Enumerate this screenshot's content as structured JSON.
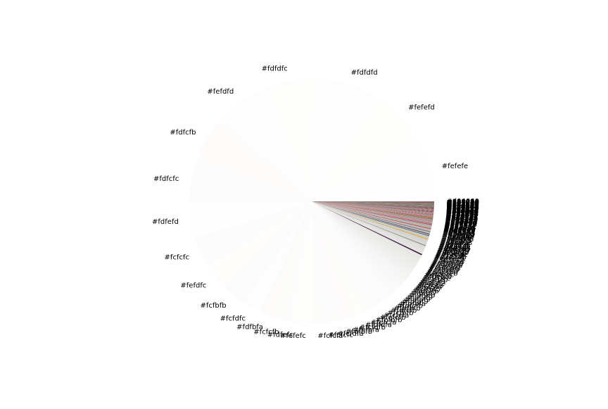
{
  "chart_data": {
    "type": "pie",
    "title": "",
    "start_angle_deg": 0,
    "direction": "counterclockwise",
    "labels": [
      "#fefefe",
      "#fefefd",
      "#fdfdfd",
      "#fdfdfc",
      "#fefdfd",
      "#fdfcfb",
      "#fdfcfc",
      "#fdfefd",
      "#fcfcfc",
      "#fefdfc",
      "#fcfbfb",
      "#fcfdfc",
      "#fdfbfa",
      "#fcfcfb",
      "#fdfefc",
      "#fefefc",
      "#fcfcfa",
      "#fcfcfc",
      "#fcfdfa",
      "#fdfbfb",
      "#fefbfa",
      "#fcfdfb",
      "#fdfdfa",
      "#fefcfa",
      "#fbfbfb",
      "#fefcfb",
      "#fcfcfa",
      "#fcfbfb",
      "#fdfcfb",
      "#fbfbfb",
      "#fdfcfb",
      "#fbfbfa",
      "#fbfaf9",
      "#fafaf9",
      "#faf9f9",
      "#f9f9f8",
      "#f8f8f7",
      "#f8f7f6",
      "#f7f6f5",
      "#f6f5f4",
      "#f5f5f3",
      "#f4f3f2",
      "#f3f2f1",
      "#f2f1f0",
      "#f1f0ee",
      "#f0efed",
      "#efeeec",
      "#eeedeb",
      "#edecea",
      "#ecebe9",
      "#ebeae8",
      "#eae9e7",
      "#e9e8e6",
      "#e8e7e5",
      "#e7e6e4",
      "#e6e5e3",
      "#3b1f42",
      "#e4e3e1",
      "#e3e2e0",
      "#e2e1df",
      "#e1e0de",
      "#dfdedc",
      "#dedddb",
      "#dcdbd9",
      "#9a9890",
      "#d8d7d5",
      "#d6d5d3",
      "#d4d3d1",
      "#d2d1cf",
      "#d0cfcd",
      "#cecdcb",
      "#d4a923",
      "#cac9c7",
      "#c8c7c5",
      "#c6c5c3",
      "#545866",
      "#c2c1bf",
      "#3d3a4c",
      "#bebdbb",
      "#bcbbb9",
      "#7a6670",
      "#b8b7b5",
      "#b6b5b3",
      "#b4b3b1",
      "#c0392b",
      "#b0afad",
      "#aeadab",
      "#acaba9",
      "#aaa9a7",
      "#a8a7a5",
      "#b3243c",
      "#a4a3a1",
      "#d23a4f",
      "#a09f9d",
      "#9e9d9b",
      "#9c9b99",
      "#e05a6a",
      "#989795",
      "#969593",
      "#949391",
      "#8e2a3c",
      "#909010",
      "#8e8d8b",
      "#c83244",
      "#8a8987",
      "#888785",
      "#f07078",
      "#848381",
      "#82817f",
      "#80807e",
      "#e84a5a",
      "#7c7b79",
      "#7a7977",
      "#ff8a8a",
      "#767573",
      "#747371",
      "#a32f45",
      "#70706e",
      "#6e6d6b",
      "#6c6b69",
      "#d85a55",
      "#686765",
      "#f08080",
      "#646361",
      "#62615f",
      "#c0283a",
      "#5e5d5b",
      "#5c5b59",
      "#5a5957",
      "#585755",
      "#565553",
      "#e26b6b",
      "#525150",
      "#50504e",
      "#4e4d4b",
      "#b8e060",
      "#4a4947",
      "#484745",
      "#c84850",
      "#444341",
      "#424140",
      "#9fcf4f",
      "#3e3d3b",
      "#3c3b39",
      "#e05a78",
      "#383735",
      "#363533",
      "#a83050",
      "#323130",
      "#30302e",
      "#d04060"
    ],
    "values": [
      64,
      59,
      63,
      52,
      54,
      47,
      42,
      36,
      31,
      28,
      23,
      19,
      16,
      14,
      12,
      11,
      10,
      9,
      8,
      7,
      6.5,
      6,
      5.5,
      5,
      4.6,
      4.3,
      4,
      3.8,
      3.6,
      3.4,
      3.2,
      3,
      2.9,
      2.8,
      2.7,
      2.6,
      2.5,
      2.4,
      2.3,
      2.2,
      2.1,
      2,
      2,
      1.9,
      1.9,
      1.8,
      1.8,
      1.7,
      1.7,
      1.6,
      1.6,
      1.5,
      1.5,
      1.5,
      1.4,
      1.4,
      1.3,
      1.3,
      1.3,
      1.2,
      1.2,
      1.2,
      1.1,
      1.1,
      1.1,
      1,
      1,
      1,
      1,
      0.95,
      0.95,
      0.9,
      0.9,
      0.9,
      0.85,
      0.85,
      0.85,
      0.8,
      0.8,
      0.8,
      0.8,
      0.75,
      0.75,
      0.75,
      0.7,
      0.7,
      0.7,
      0.7,
      0.65,
      0.65,
      0.65,
      0.65,
      0.6,
      0.6,
      0.6,
      0.6,
      0.55,
      0.55,
      0.55,
      0.55,
      0.5,
      0.5,
      0.5,
      0.5,
      0.5,
      0.45,
      0.45,
      0.45,
      0.45,
      0.45,
      0.4,
      0.4,
      0.4,
      0.4,
      0.4,
      0.4,
      0.38,
      0.38,
      0.38,
      0.38,
      0.36,
      0.36,
      0.36,
      0.36,
      0.34,
      0.34,
      0.34,
      0.34,
      0.32,
      0.32,
      0.32,
      0.32,
      0.3,
      0.3,
      0.3,
      0.3,
      0.28,
      0.28,
      0.28,
      0.28,
      0.26,
      0.26,
      0.26,
      0.26,
      0.25,
      0.25,
      0.25,
      0.25,
      0.24,
      0.24,
      0.24
    ]
  }
}
